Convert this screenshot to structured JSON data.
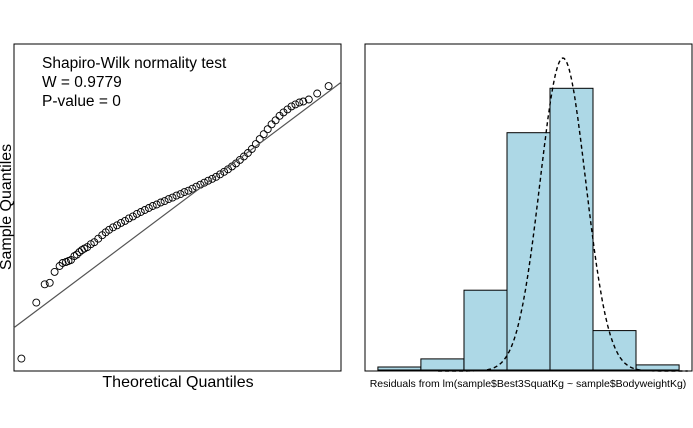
{
  "chart_data": [
    {
      "type": "scatter",
      "subtype": "qq-plot",
      "xlabel": "Theoretical Quantiles",
      "ylabel": "Sample Quantiles",
      "annotation": {
        "lines": [
          "Shapiro-Wilk normality test",
          "W = 0.9779",
          "P-value = 0"
        ],
        "placement": "top-left"
      },
      "axes_shown": false,
      "grid": false,
      "xlim": [
        -3.3,
        3.3
      ],
      "ylim": [
        -3.3,
        3.3
      ],
      "reference_line": {
        "intercept": 0.05,
        "slope": 0.75
      },
      "points": [
        [
          -3.15,
          -3.05
        ],
        [
          -2.85,
          -1.92
        ],
        [
          -2.68,
          -1.55
        ],
        [
          -2.58,
          -1.52
        ],
        [
          -2.48,
          -1.3
        ],
        [
          -2.38,
          -1.18
        ],
        [
          -2.32,
          -1.12
        ],
        [
          -2.25,
          -1.1
        ],
        [
          -2.2,
          -1.08
        ],
        [
          -2.15,
          -1.06
        ],
        [
          -2.08,
          -0.98
        ],
        [
          -2.03,
          -0.95
        ],
        [
          -1.98,
          -0.9
        ],
        [
          -1.93,
          -0.86
        ],
        [
          -1.88,
          -0.83
        ],
        [
          -1.82,
          -0.8
        ],
        [
          -1.75,
          -0.74
        ],
        [
          -1.68,
          -0.7
        ],
        [
          -1.6,
          -0.63
        ],
        [
          -1.52,
          -0.56
        ],
        [
          -1.45,
          -0.5
        ],
        [
          -1.38,
          -0.45
        ],
        [
          -1.3,
          -0.4
        ],
        [
          -1.22,
          -0.36
        ],
        [
          -1.14,
          -0.31
        ],
        [
          -1.06,
          -0.27
        ],
        [
          -0.98,
          -0.22
        ],
        [
          -0.9,
          -0.18
        ],
        [
          -0.82,
          -0.13
        ],
        [
          -0.74,
          -0.09
        ],
        [
          -0.66,
          -0.05
        ],
        [
          -0.58,
          -0.01
        ],
        [
          -0.5,
          0.03
        ],
        [
          -0.42,
          0.06
        ],
        [
          -0.34,
          0.1
        ],
        [
          -0.26,
          0.13
        ],
        [
          -0.18,
          0.17
        ],
        [
          -0.1,
          0.2
        ],
        [
          -0.02,
          0.24
        ],
        [
          0.06,
          0.27
        ],
        [
          0.14,
          0.31
        ],
        [
          0.22,
          0.34
        ],
        [
          0.3,
          0.38
        ],
        [
          0.38,
          0.42
        ],
        [
          0.46,
          0.46
        ],
        [
          0.54,
          0.5
        ],
        [
          0.62,
          0.54
        ],
        [
          0.7,
          0.58
        ],
        [
          0.78,
          0.62
        ],
        [
          0.86,
          0.67
        ],
        [
          0.94,
          0.72
        ],
        [
          1.02,
          0.77
        ],
        [
          1.1,
          0.83
        ],
        [
          1.18,
          0.89
        ],
        [
          1.26,
          0.96
        ],
        [
          1.34,
          1.03
        ],
        [
          1.42,
          1.1
        ],
        [
          1.5,
          1.18
        ],
        [
          1.58,
          1.28
        ],
        [
          1.66,
          1.38
        ],
        [
          1.74,
          1.48
        ],
        [
          1.82,
          1.58
        ],
        [
          1.9,
          1.68
        ],
        [
          1.98,
          1.76
        ],
        [
          2.06,
          1.85
        ],
        [
          2.14,
          1.92
        ],
        [
          2.22,
          1.98
        ],
        [
          2.3,
          2.04
        ],
        [
          2.38,
          2.08
        ],
        [
          2.46,
          2.12
        ],
        [
          2.54,
          2.14
        ],
        [
          2.65,
          2.18
        ],
        [
          2.82,
          2.3
        ],
        [
          3.05,
          2.45
        ]
      ]
    },
    {
      "type": "bar",
      "subtype": "histogram",
      "xlabel": "Residuals from lm(sample$Best3SquatKg ~ sample$BodyweightKg)",
      "ylabel": "",
      "axes_shown": false,
      "grid": false,
      "bin_edges": [
        -4,
        -3,
        -2,
        -1,
        0,
        1,
        2,
        3
      ],
      "values": [
        0.01,
        0.03,
        0.2,
        0.59,
        0.7,
        0.1,
        0.015
      ],
      "ylim": [
        0,
        0.8
      ],
      "density_curve": {
        "mean": 0.3,
        "sd": 0.53,
        "style": "dashed"
      }
    }
  ]
}
